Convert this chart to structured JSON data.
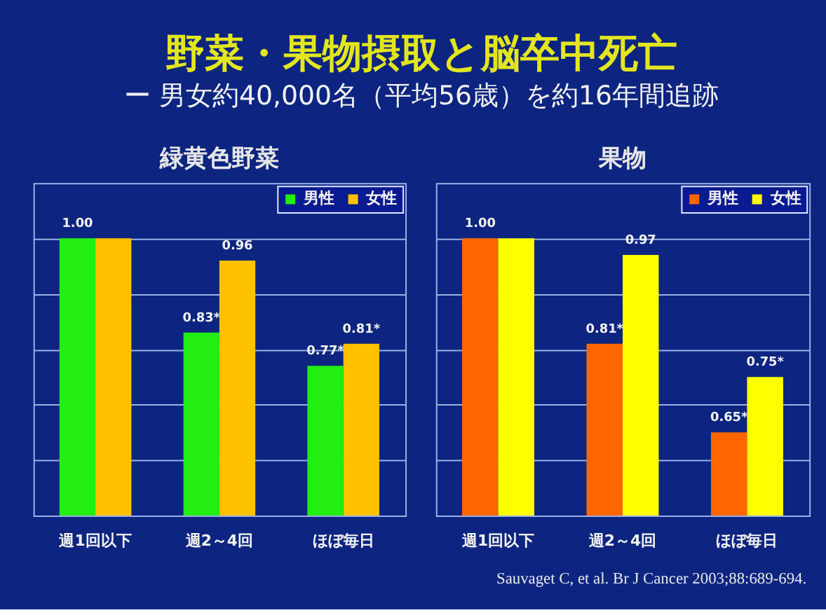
{
  "chart_data": [
    {
      "type": "other",
      "title": "野菜・果物摂取と脳卒中死亡",
      "subtitle": "ー 男女約40,000名（平均56歳）を約16年間追跡",
      "annotations": [
        "Sauvaget C, et al. Br J Cancer 2003;88:689-694."
      ]
    },
    {
      "type": "bar",
      "title": "緑黄色野菜",
      "categories": [
        "週1回以下",
        "週2～4回",
        "ほぼ毎日"
      ],
      "series": [
        {
          "name": "男性",
          "color": "#22ee11",
          "values": [
            1.0,
            0.83,
            0.77
          ],
          "value_labels": [
            "1.00",
            "0.83*",
            "0.77*"
          ]
        },
        {
          "name": "女性",
          "color": "#ffc000",
          "values": [
            1.0,
            0.96,
            0.81
          ],
          "value_labels": [
            null,
            "0.96",
            "0.81*"
          ]
        }
      ],
      "ylim": [
        0.5,
        1.1
      ],
      "yticks": [
        {
          "value": 0.5,
          "label": null
        },
        {
          "value": 0.6,
          "label": null
        },
        {
          "value": 0.7,
          "label": null
        },
        {
          "value": 0.8,
          "label": null
        },
        {
          "value": 0.9,
          "label": null
        },
        {
          "value": 1.0,
          "label": null
        }
      ],
      "tick_labels": "x",
      "grid": "y",
      "legend": "top right"
    },
    {
      "type": "bar",
      "title": "果物",
      "categories": [
        "週1回以下",
        "週2～4回",
        "ほぼ毎日"
      ],
      "series": [
        {
          "name": "男性",
          "color": "#ff6600",
          "values": [
            1.0,
            0.81,
            0.65
          ],
          "value_labels": [
            "1.00",
            "0.81*",
            "0.65*"
          ]
        },
        {
          "name": "女性",
          "color": "#ffff00",
          "values": [
            1.0,
            0.97,
            0.75
          ],
          "value_labels": [
            null,
            "0.97",
            "0.75*"
          ]
        }
      ],
      "ylim": [
        0.5,
        1.1
      ],
      "yticks": [
        {
          "value": 0.5,
          "label": null
        },
        {
          "value": 0.6,
          "label": null
        },
        {
          "value": 0.7,
          "label": null
        },
        {
          "value": 0.8,
          "label": null
        },
        {
          "value": 0.9,
          "label": null
        },
        {
          "value": 1.0,
          "label": null
        }
      ],
      "tick_labels": "x",
      "grid": "y",
      "legend": "top right"
    }
  ]
}
